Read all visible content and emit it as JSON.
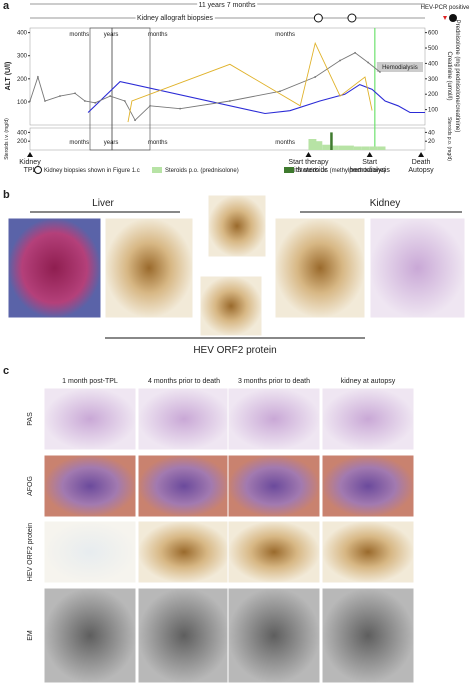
{
  "chart_data": {
    "type": "line",
    "panel_label": "a",
    "timeline_label": "11 years 7 months",
    "biopsy_label": "Kidney allograft biopsies",
    "hev_pcr_label": "HEV-PCR positive",
    "segments": [
      "months",
      "years",
      "months",
      "months"
    ],
    "segment_x": [
      15,
      18.5,
      26,
      57
    ],
    "hemodialysis_label": "Hemodialysis",
    "ylabel": "ALT (U/l)",
    "y2label": "Creatinine (umol/l)",
    "y3label": "Prednisolone (mg prednisolone/creatinine)",
    "xlim": [
      0,
      100
    ],
    "ylim": [
      0,
      420
    ],
    "yticks": [
      100,
      200,
      300,
      400
    ],
    "y2lim": [
      0,
      630
    ],
    "y2ticks": [
      100,
      200,
      300,
      400,
      500,
      600
    ],
    "series": [
      {
        "name": "ALT",
        "color": "#2b2bd6",
        "x": [
          14.7,
          22.8,
          59.5,
          65.8,
          73.4,
          79.7,
          83.5,
          86.6,
          89.9,
          93.2,
          96.2,
          100
        ],
        "values": [
          54,
          188,
          50,
          62,
          104,
          133,
          175,
          154,
          104,
          83,
          54,
          54
        ]
      },
      {
        "name": "Creatinine",
        "color": "#777777",
        "axis": "y2",
        "x": [
          0,
          2,
          3.8,
          7.6,
          11.4,
          13.9,
          16.5,
          20.3,
          24,
          26.6,
          30.4,
          38,
          50.6,
          63.3,
          72.2,
          78.5,
          82.3,
          85.6,
          88.6
        ],
        "values": [
          156,
          312,
          156,
          188,
          206,
          156,
          144,
          188,
          156,
          31,
          125,
          106,
          156,
          219,
          312,
          419,
          469,
          406,
          344
        ]
      },
      {
        "name": "Prednisolone",
        "color": "#e0b22a",
        "axis": "y2",
        "x": [
          24.8,
          25.8,
          50.6,
          68.4,
          72.2,
          78.5,
          84.8,
          86.6
        ],
        "values": [
          19,
          156,
          394,
          125,
          531,
          188,
          312,
          94
        ]
      }
    ],
    "steroid_ylabel": "Steroids i.v. (mg/d)",
    "steroid_ylim": [
      0,
      500
    ],
    "steroid_yticks": [
      200,
      400
    ],
    "steroid_y2label": "Steroids p.o. (mg/d)",
    "steroid_y2lim": [
      0,
      50
    ],
    "steroid_y2ticks": [
      20,
      40
    ],
    "po_x": [
      70.5,
      72,
      74,
      76,
      78,
      80,
      82,
      84,
      86,
      88
    ],
    "po_values": [
      25,
      20,
      12,
      10,
      10,
      10,
      8,
      8,
      8,
      8
    ],
    "iv_x": [
      76
    ],
    "iv_values": [
      400
    ],
    "events": [
      {
        "label": "Kidney TPL",
        "x": 0
      },
      {
        "label": "Start therapy with steroids",
        "x": 70.5
      },
      {
        "label": "Start hemodialysis",
        "x": 86
      },
      {
        "label": "Death Autopsy",
        "x": 99
      }
    ],
    "hemodialysis_x": 87.3,
    "biopsy_x": [
      73,
      81.5
    ],
    "legend": [
      "Kidney biopsies shown in Figure 1.c",
      "Steroids p.o. (prednisolone)",
      "Steroids i.v. (methylprednisolone)"
    ]
  },
  "panel_b": {
    "label": "b",
    "liver": "Liver",
    "kidney": "Kidney",
    "stain": "HEV ORF2 protein"
  },
  "panel_c": {
    "label": "c",
    "columns": [
      "1 month post-TPL",
      "4 months prior to death",
      "3 months prior to death",
      "kidney at autopsy"
    ],
    "rows": [
      "PAS",
      "AFOG",
      "HEV ORF2 protein",
      "EM"
    ]
  }
}
